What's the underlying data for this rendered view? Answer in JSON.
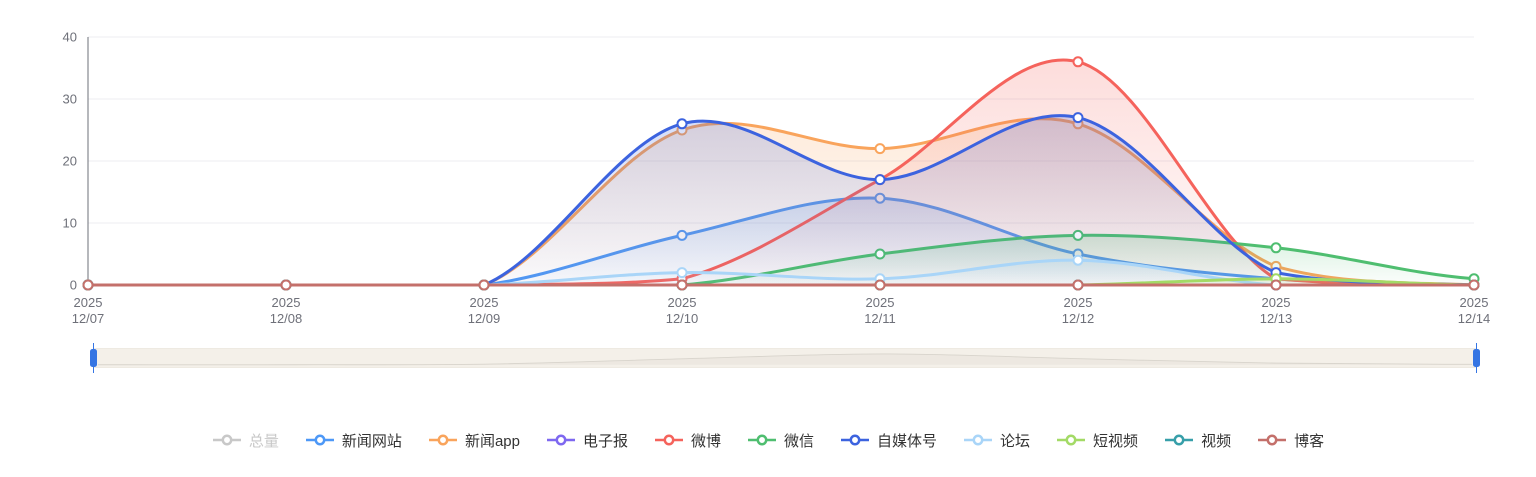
{
  "chart_data": {
    "type": "line",
    "smooth": true,
    "title": "",
    "xlabel": "",
    "ylabel": "",
    "x_year": "2025",
    "categories": [
      "12/07",
      "12/08",
      "12/09",
      "12/10",
      "12/11",
      "12/12",
      "12/13",
      "12/14"
    ],
    "ylim": [
      0,
      40
    ],
    "yticks": [
      0,
      10,
      20,
      30,
      40
    ],
    "grid": true,
    "legend_position": "bottom",
    "series": [
      {
        "name": "总量",
        "color": "#c8c8c8",
        "selected": false,
        "values": null
      },
      {
        "name": "新闻网站",
        "color": "#4d98f7",
        "selected": true,
        "values": [
          0,
          0,
          0,
          8,
          14,
          5,
          1,
          0
        ]
      },
      {
        "name": "新闻app",
        "color": "#f9a45c",
        "selected": true,
        "values": [
          0,
          0,
          0,
          25,
          22,
          26,
          3,
          0
        ]
      },
      {
        "name": "电子报",
        "color": "#7e68f0",
        "selected": true,
        "values": [
          0,
          0,
          0,
          0,
          0,
          0,
          0,
          0
        ]
      },
      {
        "name": "微博",
        "color": "#f5635c",
        "selected": true,
        "values": [
          0,
          0,
          0,
          1,
          17,
          36,
          1,
          0
        ]
      },
      {
        "name": "微信",
        "color": "#4fbe70",
        "selected": true,
        "values": [
          0,
          0,
          0,
          0,
          5,
          8,
          6,
          1
        ]
      },
      {
        "name": "自媒体号",
        "color": "#3c63df",
        "selected": true,
        "values": [
          0,
          0,
          0,
          26,
          17,
          27,
          2,
          0
        ]
      },
      {
        "name": "论坛",
        "color": "#a9d5f8",
        "selected": true,
        "values": [
          0,
          0,
          0,
          2,
          1,
          4,
          0,
          0
        ]
      },
      {
        "name": "短视频",
        "color": "#a3da66",
        "selected": true,
        "values": [
          0,
          0,
          0,
          0,
          0,
          0,
          1,
          0
        ]
      },
      {
        "name": "视频",
        "color": "#379fa9",
        "selected": true,
        "values": [
          0,
          0,
          0,
          0,
          0,
          0,
          0,
          0
        ]
      },
      {
        "name": "博客",
        "color": "#c4706b",
        "selected": true,
        "values": [
          0,
          0,
          0,
          0,
          0,
          0,
          0,
          0
        ]
      }
    ]
  },
  "axis": {
    "label_color": "#6e7079",
    "axis_line_color": "#6e7079",
    "grid_line_color": "#ececf2"
  },
  "datazoom": {
    "shadow_profile": [
      0,
      0,
      0.05,
      0.45,
      0.8,
      0.45,
      0.12,
      0.03
    ],
    "handle_color": "#3575e3",
    "track_color": "#f4f0e9"
  }
}
